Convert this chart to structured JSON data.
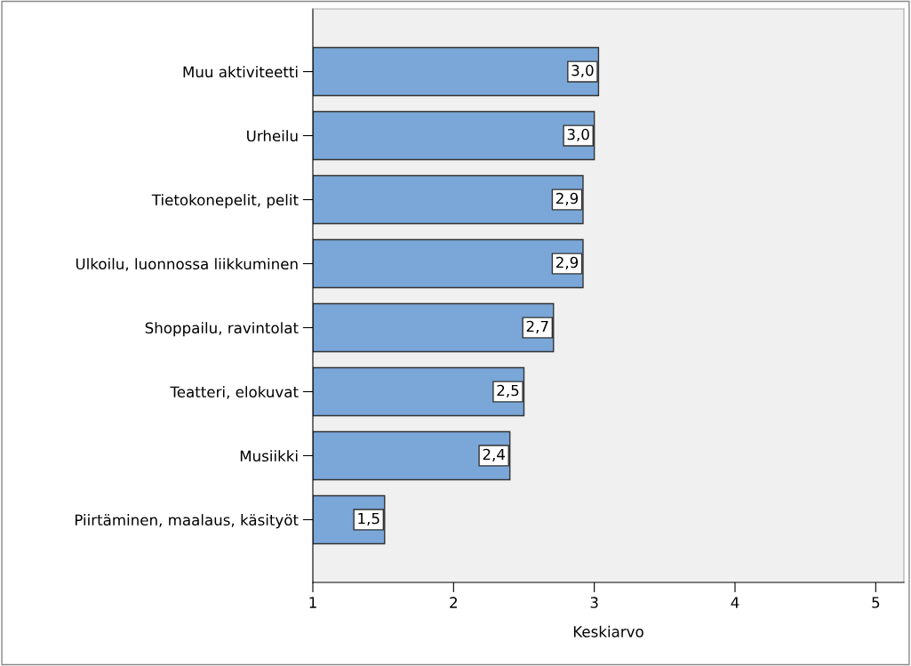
{
  "chart_data": {
    "type": "bar",
    "orientation": "horizontal",
    "categories": [
      "Muu aktiviteetti",
      "Urheilu",
      "Tietokonepelit, pelit",
      "Ulkoilu, luonnossa liikkuminen",
      "Shoppailu, ravintolat",
      "Teatteri, elokuvat",
      "Musiikki",
      "Piirtäminen, maalaus, käsityöt"
    ],
    "values": [
      3.03,
      3.0,
      2.92,
      2.92,
      2.71,
      2.5,
      2.4,
      1.51
    ],
    "value_labels": [
      "3,0",
      "3,0",
      "2,9",
      "2,9",
      "2,7",
      "2,5",
      "2,4",
      "1,5"
    ],
    "color": "#7aa7d7",
    "xlabel": "Keskiarvo",
    "xlim": [
      1,
      5.2
    ],
    "xticks": [
      1,
      2,
      3,
      4,
      5
    ],
    "grid": false,
    "legend": false
  }
}
